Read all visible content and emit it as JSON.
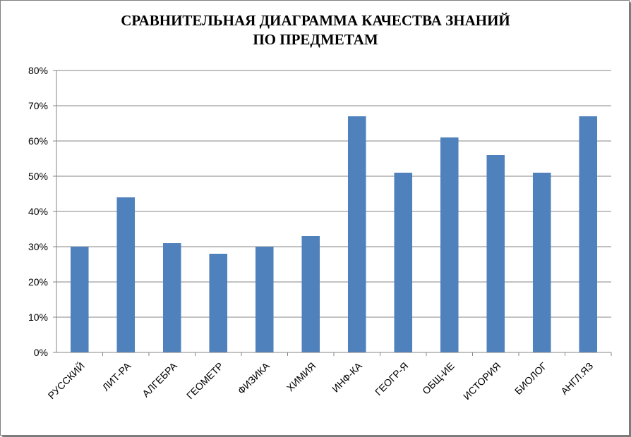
{
  "chart_data": {
    "type": "bar",
    "title_lines": [
      "СРАВНИТЕЛЬНАЯ ДИАГРАММА КАЧЕСТВА ЗНАНИЙ",
      "ПО ПРЕДМЕТАМ"
    ],
    "categories": [
      "РУССКИЙ",
      "ЛИТ-РА",
      "АЛГЕБРА",
      "ГЕОМЕТР",
      "ФИЗИКА",
      "ХИМИЯ",
      "ИНФ-КА",
      "ГЕОГР-Я",
      "ОБЩ-ИЕ",
      "ИСТОРИЯ",
      "БИОЛОГ",
      "АНГЛ.ЯЗ"
    ],
    "values": [
      30,
      44,
      31,
      28,
      30,
      33,
      67,
      51,
      61,
      56,
      51,
      67
    ],
    "y_ticks": [
      "0%",
      "10%",
      "20%",
      "30%",
      "40%",
      "50%",
      "60%",
      "70%",
      "80%"
    ],
    "ylim": [
      0,
      80
    ],
    "y_unit": "%",
    "xlabel": "",
    "ylabel": "",
    "grid": true,
    "legend": "none",
    "bar_color": "#4f81bd",
    "grid_color": "#868686"
  }
}
